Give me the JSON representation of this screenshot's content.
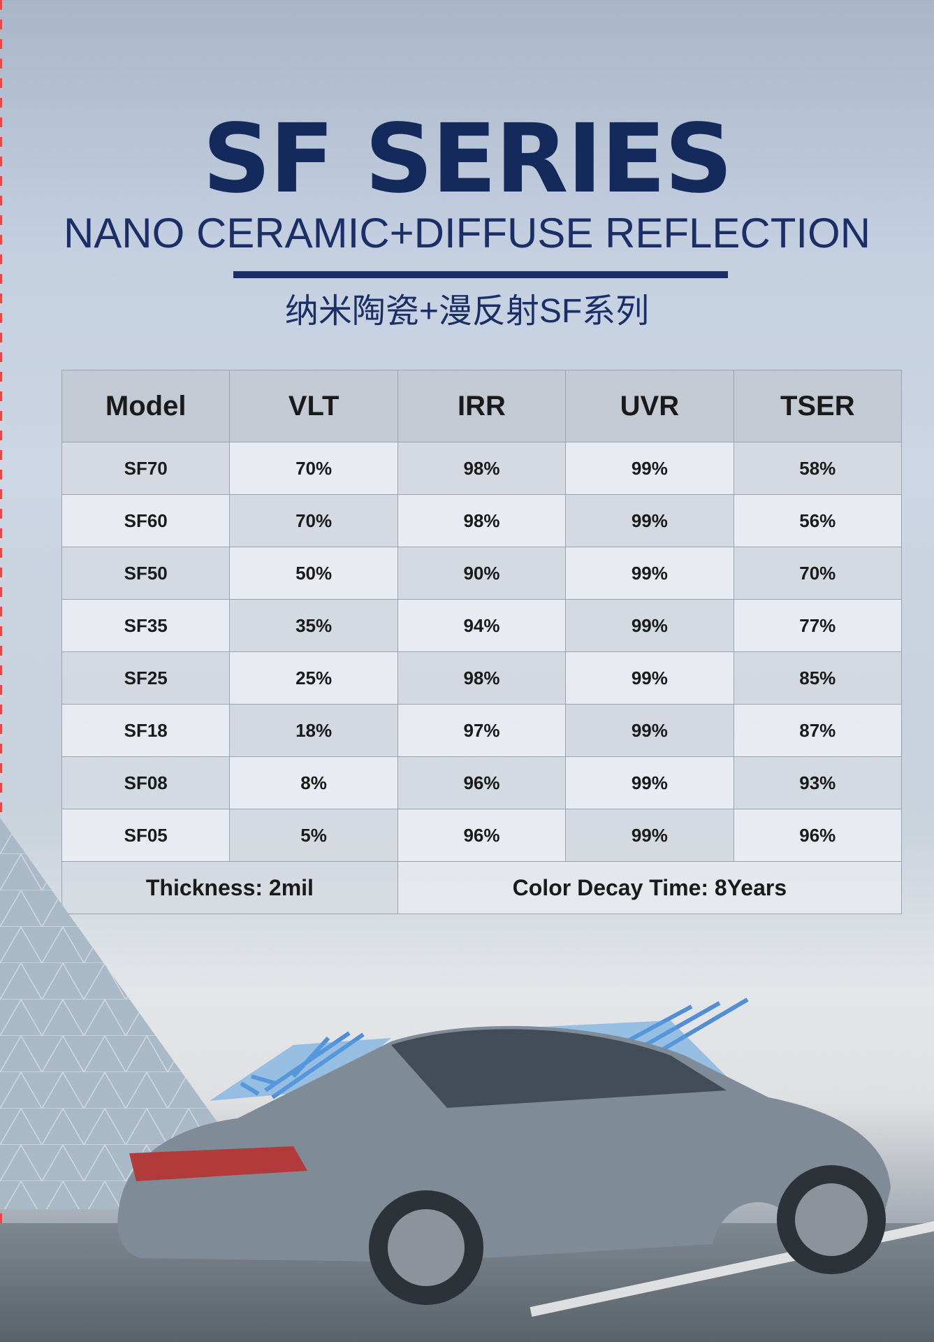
{
  "header": {
    "title": "SF SERIES",
    "subtitle": "NANO CERAMIC+DIFFUSE REFLECTION",
    "chinese_title": "纳米陶瓷+漫反射SF系列"
  },
  "table": {
    "columns": [
      "Model",
      "VLT",
      "IRR",
      "UVR",
      "TSER"
    ],
    "rows": [
      [
        "SF70",
        "70%",
        "98%",
        "99%",
        "58%"
      ],
      [
        "SF60",
        "70%",
        "98%",
        "99%",
        "56%"
      ],
      [
        "SF50",
        "50%",
        "90%",
        "99%",
        "70%"
      ],
      [
        "SF35",
        "35%",
        "94%",
        "99%",
        "77%"
      ],
      [
        "SF25",
        "25%",
        "98%",
        "99%",
        "85%"
      ],
      [
        "SF18",
        "18%",
        "97%",
        "99%",
        "87%"
      ],
      [
        "SF08",
        "8%",
        "96%",
        "99%",
        "93%"
      ],
      [
        "SF05",
        "5%",
        "96%",
        "99%",
        "96%"
      ]
    ],
    "footer": {
      "thickness": "Thickness: 2mil",
      "color_decay": "Color Decay Time: 8Years"
    }
  },
  "colors": {
    "brand_navy": "#152a5c",
    "accent_blue": "#3a7fd0"
  }
}
